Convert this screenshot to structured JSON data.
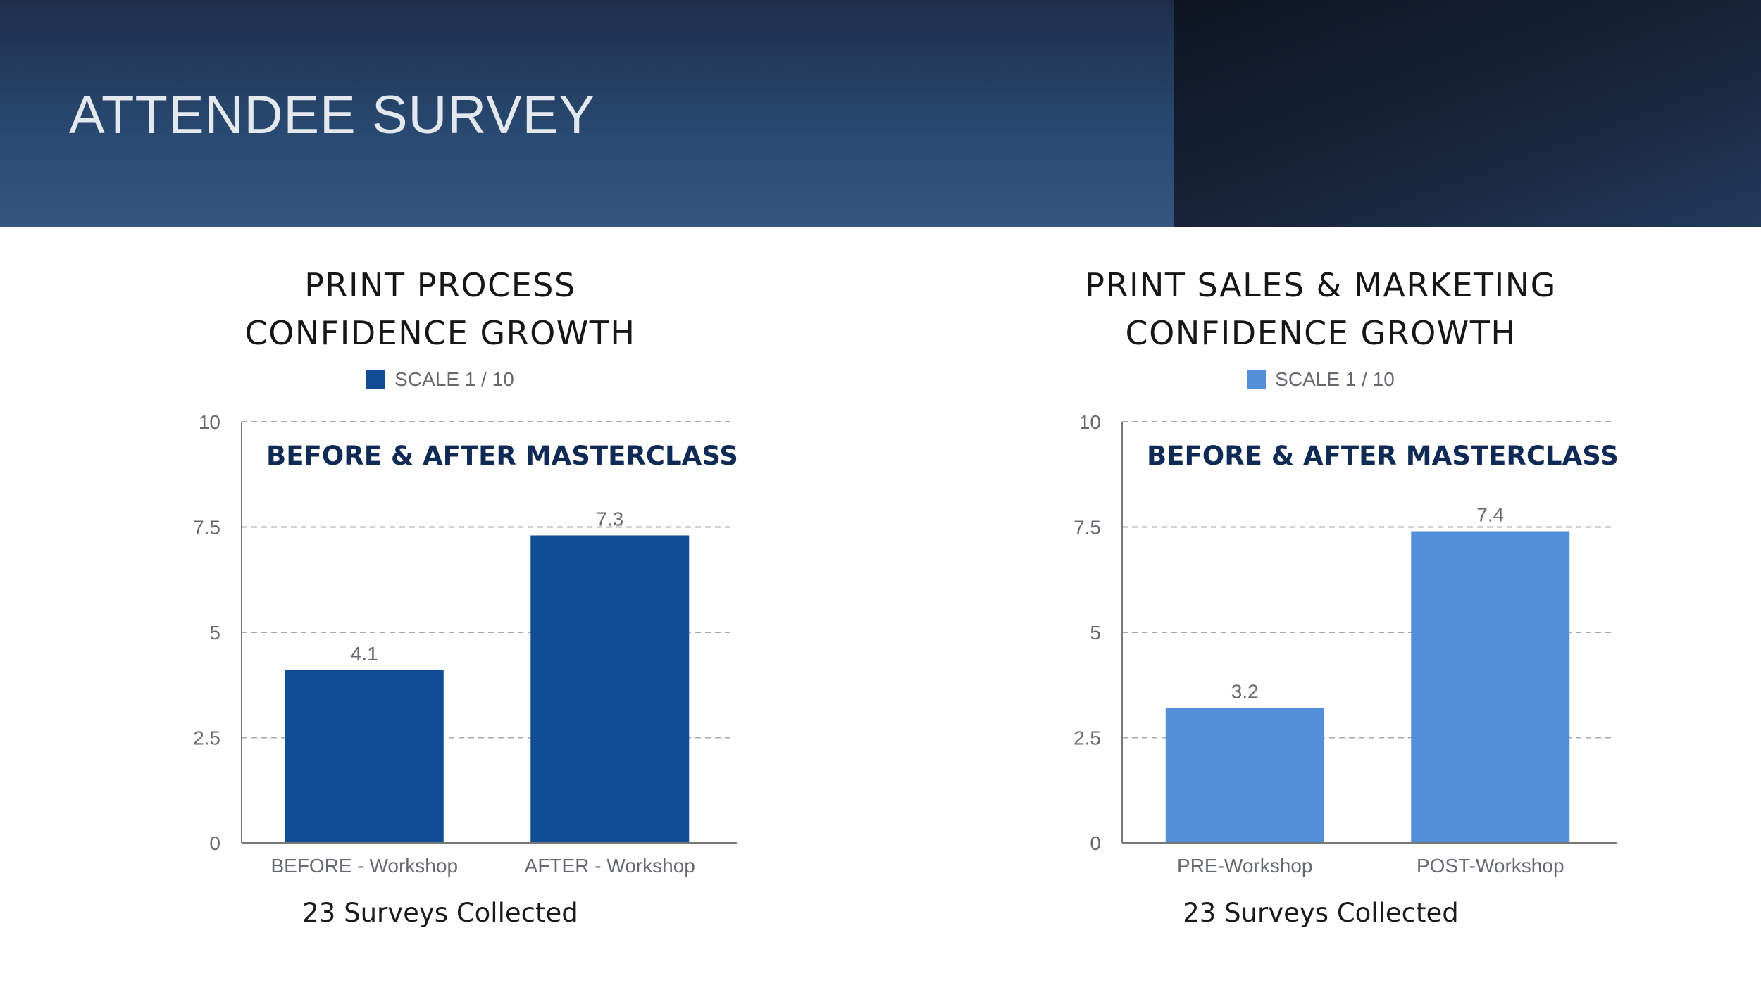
{
  "slide": {
    "title": "ATTENDEE SURVEY"
  },
  "colors": {
    "banner": "#2a4a72",
    "title_text": "#e3e7ee",
    "annotation_text": "#0f2a55"
  },
  "chart_data": [
    {
      "type": "bar",
      "title": [
        "PRINT PROCESS",
        "CONFIDENCE GROWTH"
      ],
      "annotation": "BEFORE & AFTER MASTERCLASS",
      "footer": "23 Surveys Collected",
      "categories": [
        "BEFORE - Workshop",
        "AFTER - Workshop"
      ],
      "series": [
        {
          "name": "SCALE 1 / 10",
          "values": [
            4.1,
            7.3
          ],
          "labels": [
            "4.1",
            "7.3"
          ],
          "color": "#104d95"
        }
      ],
      "ylim": [
        0,
        10
      ],
      "yticks": [
        "0",
        "2.5",
        "5",
        "7.5",
        "10"
      ],
      "grid": true,
      "legend": "top-center"
    },
    {
      "type": "bar",
      "title": [
        "PRINT SALES & MARKETING",
        "CONFIDENCE GROWTH"
      ],
      "annotation": "BEFORE & AFTER MASTERCLASS",
      "footer": "23 Surveys Collected",
      "categories": [
        "PRE-Workshop",
        "POST-Workshop"
      ],
      "series": [
        {
          "name": "SCALE 1 / 10",
          "values": [
            3.2,
            7.4
          ],
          "labels": [
            "3.2",
            "7.4"
          ],
          "color": "#5390d9"
        }
      ],
      "ylim": [
        0,
        10
      ],
      "yticks": [
        "0",
        "2.5",
        "5",
        "7.5",
        "10"
      ],
      "grid": true,
      "legend": "top-center"
    }
  ]
}
